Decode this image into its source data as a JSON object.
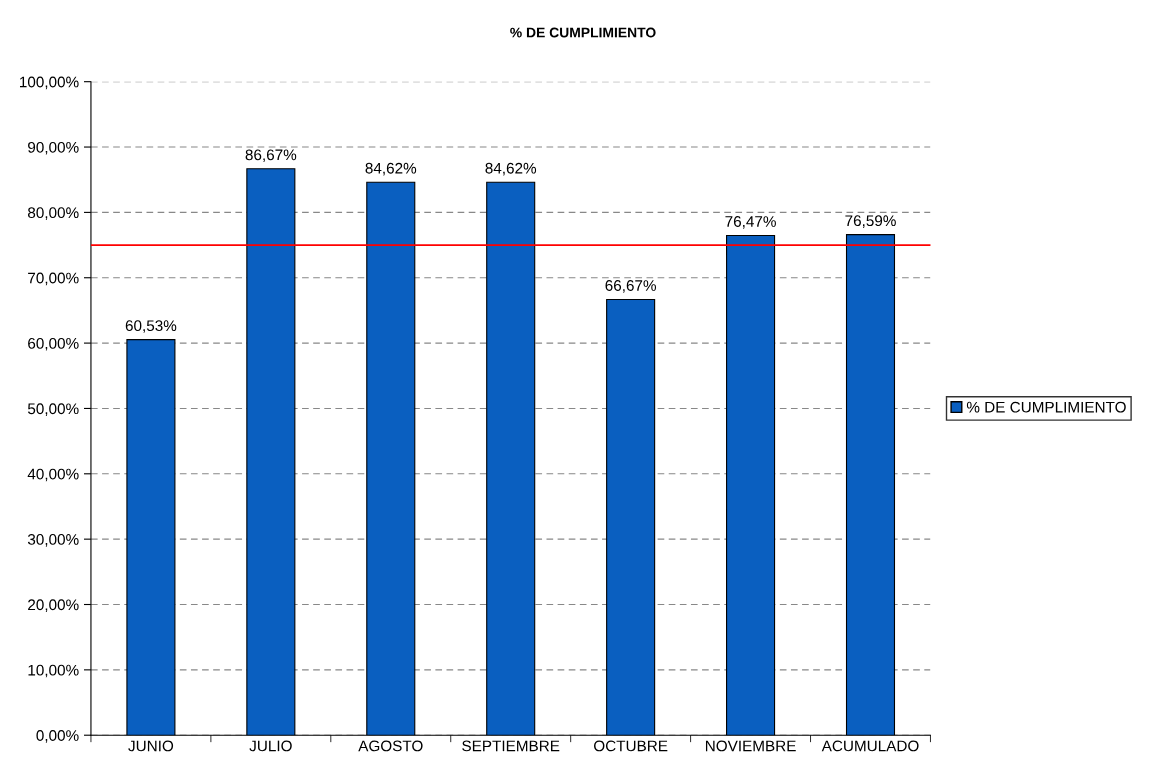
{
  "chart_data": {
    "type": "bar",
    "title": "% DE CUMPLIMIENTO",
    "categories": [
      "JUNIO",
      "JULIO",
      "AGOSTO",
      "SEPTIEMBRE",
      "OCTUBRE",
      "NOVIEMBRE",
      "ACUMULADO"
    ],
    "series": [
      {
        "name": "% DE CUMPLIMIENTO",
        "color": "#0a5fc0",
        "values": [
          60.53,
          86.67,
          84.62,
          84.62,
          66.67,
          76.47,
          76.59
        ],
        "value_labels": [
          "60,53%",
          "86,67%",
          "84,62%",
          "84,62%",
          "66,67%",
          "76,47%",
          "76,59%"
        ]
      }
    ],
    "ylim": [
      0,
      100
    ],
    "yticks": [
      {
        "value": 0,
        "label": "0,00%"
      },
      {
        "value": 10,
        "label": "10,00%"
      },
      {
        "value": 20,
        "label": "20,00%"
      },
      {
        "value": 30,
        "label": "30,00%"
      },
      {
        "value": 40,
        "label": "40,00%"
      },
      {
        "value": 50,
        "label": "50,00%"
      },
      {
        "value": 60,
        "label": "60,00%"
      },
      {
        "value": 70,
        "label": "70,00%"
      },
      {
        "value": 80,
        "label": "80,00%"
      },
      {
        "value": 90,
        "label": "90,00%"
      },
      {
        "value": 100,
        "label": "100,00%"
      }
    ],
    "ref_lines": [
      {
        "axis": "y",
        "value": 75,
        "color": "#ff0000",
        "line_style": "solid"
      }
    ],
    "grid": "y",
    "legend": "right"
  }
}
